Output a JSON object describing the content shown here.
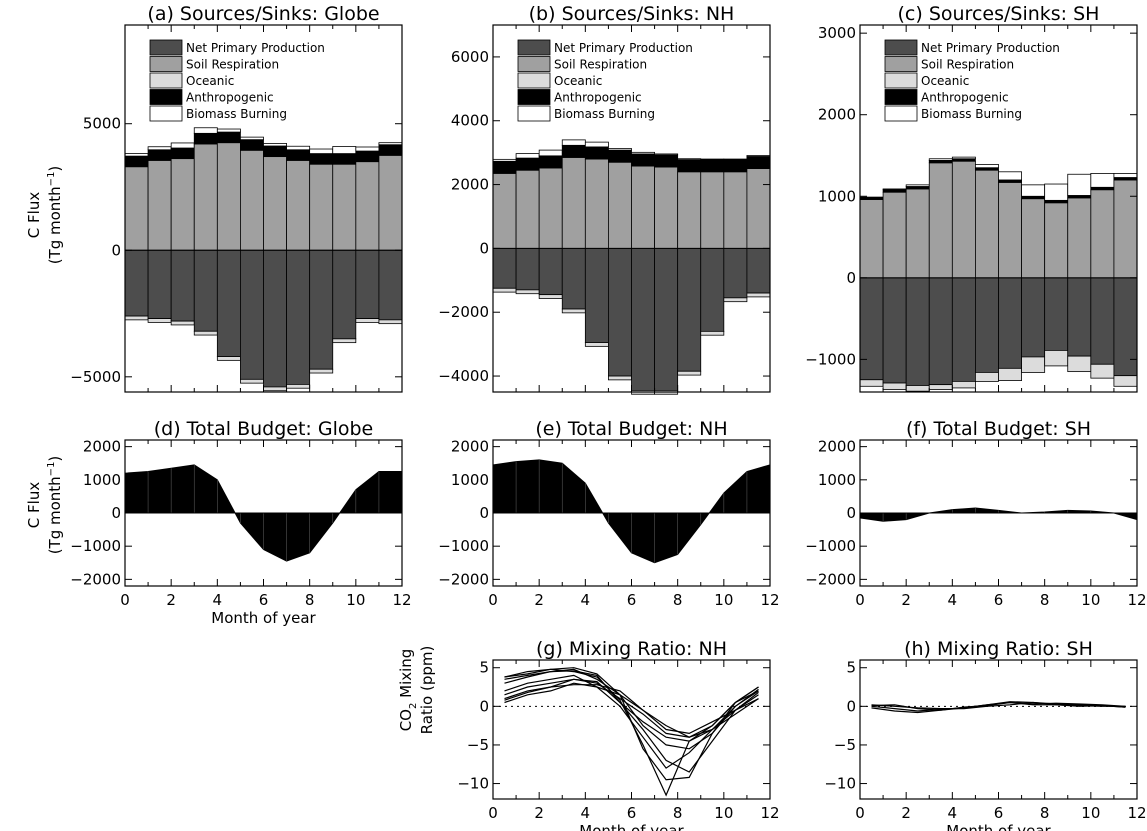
{
  "colors": {
    "npp": "#4d4d4d",
    "soil": "#a0a0a0",
    "ocean": "#dcdcdc",
    "anthro": "#000000",
    "biomass": "#ffffff",
    "axis": "#000000"
  },
  "shared": {
    "xlabel": "Month of year",
    "x_ticks": [
      "0",
      "2",
      "4",
      "6",
      "8",
      "10",
      "12"
    ],
    "flux_ylabel_1": "C Flux",
    "flux_ylabel_2": "(Tg month",
    "flux_ylabel_sup": "−1",
    "flux_ylabel_3": ")",
    "co2_ylabel_1": "CO",
    "co2_ylabel_sub": "2",
    "co2_ylabel_2": " Mixing",
    "co2_ylabel_3": "Ratio (ppm)",
    "legend": [
      "Net Primary Production",
      "Soil Respiration",
      "Oceanic",
      "Anthropogenic",
      "Biomass Burning"
    ]
  },
  "chart_data": [
    {
      "id": "a",
      "type": "bar",
      "stacked": true,
      "title": "(a) Sources/Sinks: Globe",
      "ylim": [
        -5600,
        8900
      ],
      "yticks": [
        -5000,
        0,
        5000
      ],
      "ytick_labels": [
        "−5000",
        "0",
        "5000"
      ],
      "months": [
        1,
        2,
        3,
        4,
        5,
        6,
        7,
        8,
        9,
        10,
        11,
        12
      ],
      "series": [
        {
          "name": "Soil Respiration",
          "values": [
            3300,
            3550,
            3620,
            4200,
            4250,
            3950,
            3700,
            3550,
            3400,
            3400,
            3500,
            3750
          ]
        },
        {
          "name": "Anthropogenic",
          "values": [
            420,
            420,
            420,
            420,
            420,
            420,
            420,
            420,
            420,
            420,
            420,
            420
          ]
        },
        {
          "name": "Biomass Burning",
          "values": [
            100,
            120,
            200,
            220,
            120,
            100,
            100,
            140,
            180,
            280,
            160,
            80
          ]
        },
        {
          "name": "Net Primary Production",
          "values": [
            -2600,
            -2700,
            -2800,
            -3200,
            -4200,
            -5100,
            -5400,
            -5300,
            -4700,
            -3500,
            -2700,
            -2750
          ]
        },
        {
          "name": "Oceanic",
          "values": [
            -150,
            -150,
            -150,
            -150,
            -150,
            -150,
            -150,
            -150,
            -150,
            -150,
            -150,
            -150
          ]
        }
      ],
      "legend": true
    },
    {
      "id": "b",
      "type": "bar",
      "stacked": true,
      "title": "(b) Sources/Sinks: NH",
      "ylim": [
        -4500,
        7000
      ],
      "yticks": [
        -4000,
        -2000,
        0,
        2000,
        4000,
        6000
      ],
      "ytick_labels": [
        "−4000",
        "−2000",
        "0",
        "2000",
        "4000",
        "6000"
      ],
      "months": [
        1,
        2,
        3,
        4,
        5,
        6,
        7,
        8,
        9,
        10,
        11,
        12
      ],
      "series": [
        {
          "name": "Soil Respiration",
          "values": [
            2350,
            2450,
            2520,
            2850,
            2800,
            2700,
            2580,
            2550,
            2400,
            2400,
            2400,
            2500
          ]
        },
        {
          "name": "Anthropogenic",
          "values": [
            380,
            380,
            380,
            380,
            380,
            380,
            380,
            380,
            380,
            380,
            380,
            380
          ]
        },
        {
          "name": "Biomass Burning",
          "values": [
            60,
            140,
            180,
            170,
            150,
            50,
            50,
            30,
            30,
            20,
            20,
            30
          ]
        },
        {
          "name": "Net Primary Production",
          "values": [
            -1250,
            -1300,
            -1450,
            -1900,
            -2950,
            -4000,
            -4450,
            -4450,
            -3850,
            -2600,
            -1550,
            -1400
          ]
        },
        {
          "name": "Oceanic",
          "values": [
            -120,
            -120,
            -120,
            -120,
            -120,
            -120,
            -120,
            -120,
            -120,
            -120,
            -120,
            -120
          ]
        }
      ],
      "legend": true
    },
    {
      "id": "c",
      "type": "bar",
      "stacked": true,
      "title": "(c) Sources/Sinks: SH",
      "ylim": [
        -1400,
        3100
      ],
      "yticks": [
        -1000,
        0,
        1000,
        2000,
        3000
      ],
      "ytick_labels": [
        "−1000",
        "0",
        "1000",
        "2000",
        "3000"
      ],
      "months": [
        1,
        2,
        3,
        4,
        5,
        6,
        7,
        8,
        9,
        10,
        11,
        12
      ],
      "series": [
        {
          "name": "Soil Respiration",
          "values": [
            960,
            1050,
            1090,
            1410,
            1430,
            1320,
            1170,
            970,
            920,
            980,
            1080,
            1200
          ]
        },
        {
          "name": "Anthropogenic",
          "values": [
            30,
            30,
            30,
            30,
            30,
            30,
            30,
            30,
            30,
            30,
            30,
            30
          ]
        },
        {
          "name": "Biomass Burning",
          "values": [
            0,
            10,
            20,
            20,
            20,
            40,
            100,
            140,
            200,
            260,
            170,
            50
          ]
        },
        {
          "name": "Net Primary Production",
          "values": [
            -1250,
            -1290,
            -1320,
            -1310,
            -1270,
            -1160,
            -1110,
            -970,
            -890,
            -960,
            -1060,
            -1200
          ]
        },
        {
          "name": "Oceanic",
          "values": [
            -80,
            -80,
            -70,
            -60,
            -80,
            -110,
            -150,
            -190,
            -190,
            -190,
            -170,
            -130
          ]
        }
      ],
      "legend": true
    },
    {
      "id": "d",
      "type": "area",
      "title": "(d) Total Budget: Globe",
      "ylim": [
        -2200,
        2200
      ],
      "yticks": [
        -2000,
        -1000,
        0,
        1000,
        2000
      ],
      "ytick_labels": [
        "−2000",
        "−1000",
        "0",
        "1000",
        "2000"
      ],
      "x": [
        0,
        1,
        2,
        3,
        4,
        5,
        6,
        7,
        8,
        9,
        10,
        11,
        12
      ],
      "y": [
        1200,
        1250,
        1350,
        1450,
        1000,
        -300,
        -1100,
        -1450,
        -1200,
        -300,
        700,
        1250,
        1250
      ]
    },
    {
      "id": "e",
      "type": "area",
      "title": "(e) Total Budget: NH",
      "ylim": [
        -2200,
        2200
      ],
      "yticks": [
        -2000,
        -1000,
        0,
        1000,
        2000
      ],
      "ytick_labels": [
        "−2000",
        "−1000",
        "0",
        "1000",
        "2000"
      ],
      "x": [
        0,
        1,
        2,
        3,
        4,
        5,
        6,
        7,
        8,
        9,
        10,
        11,
        12
      ],
      "y": [
        1450,
        1550,
        1600,
        1500,
        900,
        -300,
        -1200,
        -1500,
        -1250,
        -350,
        600,
        1250,
        1450
      ]
    },
    {
      "id": "f",
      "type": "area",
      "title": "(f) Total Budget: SH",
      "ylim": [
        -2200,
        2200
      ],
      "yticks": [
        -2000,
        -1000,
        0,
        1000,
        2000
      ],
      "ytick_labels": [
        "−2000",
        "−1000",
        "0",
        "1000",
        "2000"
      ],
      "x": [
        0,
        1,
        2,
        3,
        4,
        5,
        6,
        7,
        8,
        9,
        10,
        11,
        12
      ],
      "y": [
        -150,
        -250,
        -200,
        0,
        100,
        150,
        80,
        0,
        30,
        80,
        60,
        0,
        -200
      ]
    },
    {
      "id": "g",
      "type": "line",
      "title": "(g) Mixing Ratio: NH",
      "ylim": [
        -12,
        6
      ],
      "yticks": [
        -10,
        -5,
        0,
        5
      ],
      "ytick_labels": [
        "−10",
        "−5",
        "0",
        "5"
      ],
      "x": [
        0.5,
        1.5,
        2.5,
        3.5,
        4.5,
        5.5,
        6.5,
        7.5,
        8.5,
        9.5,
        10.5,
        11.5
      ],
      "zero_dotted": true,
      "series": [
        {
          "values": [
            3.8,
            4.2,
            4.8,
            5.0,
            4.2,
            1.5,
            -5.5,
            -9.5,
            -9.2,
            -3.5,
            0.0,
            2.0
          ]
        },
        {
          "values": [
            3.5,
            4.0,
            4.5,
            4.6,
            4.0,
            0.5,
            -3.0,
            -7.0,
            -8.5,
            -4.5,
            -0.5,
            1.8
          ]
        },
        {
          "values": [
            3.0,
            3.8,
            4.5,
            4.8,
            3.5,
            1.5,
            -2.5,
            -5.0,
            -5.5,
            -3.5,
            0.5,
            2.0
          ]
        },
        {
          "values": [
            2.0,
            3.0,
            3.5,
            4.0,
            2.5,
            0.0,
            -4.0,
            -8.0,
            -6.0,
            -3.0,
            0.0,
            2.2
          ]
        },
        {
          "values": [
            1.0,
            2.0,
            2.5,
            3.5,
            3.2,
            0.5,
            -2.0,
            -4.0,
            -4.5,
            -3.0,
            -0.5,
            1.5
          ]
        },
        {
          "values": [
            0.5,
            1.5,
            2.0,
            3.0,
            2.5,
            1.5,
            -0.5,
            -2.5,
            -4.0,
            -3.0,
            -1.0,
            1.0
          ]
        },
        {
          "values": [
            1.5,
            2.5,
            3.0,
            3.5,
            3.0,
            1.0,
            -1.0,
            -3.5,
            -4.0,
            -2.5,
            0.5,
            2.5
          ]
        },
        {
          "values": [
            0.8,
            1.8,
            2.5,
            2.8,
            2.8,
            2.0,
            -0.5,
            -3.0,
            -3.5,
            -2.0,
            -0.5,
            1.0
          ]
        },
        {
          "values": [
            3.8,
            4.5,
            4.8,
            4.5,
            3.8,
            0.8,
            -5.0,
            -11.5,
            -4.5,
            -2.5,
            0.5,
            2.5
          ]
        }
      ]
    },
    {
      "id": "h",
      "type": "line",
      "title": "(h) Mixing Ratio: SH",
      "ylim": [
        -12,
        6
      ],
      "yticks": [
        -10,
        -5,
        0,
        5
      ],
      "ytick_labels": [
        "−10",
        "−5",
        "0",
        "5"
      ],
      "x": [
        0.5,
        1.5,
        2.5,
        3.5,
        4.5,
        5.5,
        6.5,
        7.5,
        8.5,
        9.5,
        10.5,
        11.5
      ],
      "zero_dotted": true,
      "series": [
        {
          "values": [
            0.1,
            0.2,
            -0.3,
            -0.5,
            -0.2,
            0.2,
            0.5,
            0.3,
            0.4,
            0.3,
            0.2,
            0.0
          ]
        },
        {
          "values": [
            0.2,
            0.0,
            -0.2,
            -0.3,
            -0.3,
            0.0,
            0.2,
            0.5,
            0.3,
            0.2,
            0.1,
            -0.1
          ]
        },
        {
          "values": [
            -0.2,
            -0.6,
            -0.8,
            -0.5,
            -0.1,
            0.1,
            0.5,
            0.2,
            0.2,
            0.1,
            0.0,
            0.0
          ]
        },
        {
          "values": [
            0.0,
            -0.3,
            -0.6,
            -0.4,
            -0.2,
            0.2,
            0.6,
            0.5,
            0.2,
            0.0,
            0.1,
            -0.1
          ]
        }
      ]
    }
  ]
}
